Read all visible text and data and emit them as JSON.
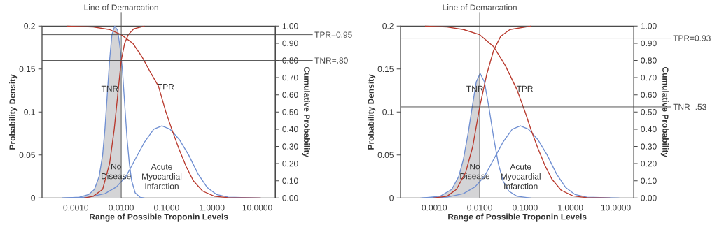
{
  "chart_data": [
    {
      "type": "line",
      "xlabel": "Range of Possible Troponin Levels",
      "ylabel": "Probability Density",
      "y2label": "Cumulative Probability",
      "log": "x",
      "xlim": [
        0.00018,
        25
      ],
      "xticks": [
        {
          "value": 0.001,
          "label": "0.0010"
        },
        {
          "value": 0.01,
          "label": "0.0100"
        },
        {
          "value": 0.1,
          "label": "0.1000"
        },
        {
          "value": 1,
          "label": "1.0000"
        },
        {
          "value": 10,
          "label": "10.0000"
        }
      ],
      "ylim": [
        0,
        0.2
      ],
      "yticks": [
        0,
        0.05,
        0.1,
        0.15,
        0.2
      ],
      "y2lim": [
        0,
        1
      ],
      "y2ticks": [
        {
          "value": 0,
          "label": "0.00"
        },
        {
          "value": 0.1,
          "label": "0.10"
        },
        {
          "value": 0.2,
          "label": "0.20"
        },
        {
          "value": 0.3,
          "label": "0.30"
        },
        {
          "value": 0.4,
          "label": "0.40"
        },
        {
          "value": 0.5,
          "label": "0.50"
        },
        {
          "value": 0.6,
          "label": "0.60"
        },
        {
          "value": 0.7,
          "label": "0.70"
        },
        {
          "value": 0.8,
          "label": "0.80"
        },
        {
          "value": 0.9,
          "label": "0.90"
        },
        {
          "value": 1,
          "label": "1.00"
        }
      ],
      "series": [
        {
          "type": "area",
          "color": "#d4d4d6",
          "x": [
            0.000492,
            0.0012,
            0.00191,
            0.00257,
            0.00326,
            0.00389,
            0.00437,
            0.00492,
            0.00554,
            0.00623,
            0.00718,
            0.00838,
            0.00942,
            0.01
          ],
          "values": [
            0,
            0.001,
            0.004,
            0.01,
            0.025,
            0.05,
            0.08,
            0.12,
            0.16,
            0.19,
            0.2,
            0.195,
            0.175,
            0.163
          ]
        },
        {
          "type": "line",
          "color": "#6f8fd2",
          "x": [
            0.000492,
            0.0012,
            0.00191,
            0.00257,
            0.00326,
            0.00389,
            0.00437,
            0.00492,
            0.00554,
            0.00623,
            0.00718,
            0.00838,
            0.00942,
            0.0106,
            0.0119,
            0.0134,
            0.0151,
            0.017,
            0.0203,
            0.0257,
            0.0326
          ],
          "values": [
            0,
            0.001,
            0.004,
            0.01,
            0.025,
            0.05,
            0.08,
            0.12,
            0.16,
            0.19,
            0.2,
            0.195,
            0.175,
            0.15,
            0.11,
            0.07,
            0.04,
            0.02,
            0.006,
            0.001,
            0
          ]
        },
        {
          "type": "line",
          "color": "#6f8fd2",
          "x": [
            0.000492,
            0.00191,
            0.00437,
            0.00789,
            0.0127,
            0.0203,
            0.0326,
            0.0522,
            0.0789,
            0.119,
            0.191,
            0.307,
            0.492,
            0.79,
            1.27,
            2.29,
            11.9
          ],
          "values": [
            0,
            0.001,
            0.005,
            0.013,
            0.025,
            0.045,
            0.065,
            0.08,
            0.084,
            0.08,
            0.068,
            0.05,
            0.028,
            0.012,
            0.004,
            0.001,
            0
          ]
        },
        {
          "type": "line",
          "axis": "y2",
          "color": "#b8382c",
          "x": [
            0.00152,
            0.00242,
            0.00389,
            0.00554,
            0.00702,
            0.00838,
            0.01,
            0.0119,
            0.0143,
            0.0191,
            0.0326
          ],
          "values": [
            0,
            0.01,
            0.05,
            0.2,
            0.4,
            0.6,
            0.8,
            0.9,
            0.95,
            0.985,
            1
          ]
        },
        {
          "type": "line",
          "axis": "y2",
          "color": "#b8382c",
          "x": [
            0.000623,
            0.00242,
            0.00554,
            0.01,
            0.018,
            0.0289,
            0.0464,
            0.0662,
            0.0965,
            0.134,
            0.191,
            0.273,
            0.389,
            0.624,
            1.13,
            2.29,
            11.9
          ],
          "values": [
            1,
            0.995,
            0.98,
            0.95,
            0.9,
            0.82,
            0.72,
            0.65,
            0.5,
            0.39,
            0.28,
            0.18,
            0.1,
            0.04,
            0.01,
            0.002,
            0
          ]
        }
      ],
      "ref_lines": [
        {
          "axis": "x",
          "value": 0.01,
          "label": "Line of Demarcation"
        },
        {
          "axis": "y2",
          "value": 0.95,
          "label": "TPR=0.95"
        },
        {
          "axis": "y2",
          "value": 0.8,
          "label": "TNR=.80"
        }
      ],
      "annotations": [
        "TNR",
        "TPR",
        "No Disease",
        "Acute Myocardial Infarction"
      ]
    },
    {
      "type": "line",
      "xlabel": "Range of Possible Troponin Levels",
      "ylabel": "Probability Density",
      "y2label": "Cumulative Probability",
      "log": "x",
      "xlim": [
        0.00018,
        25
      ],
      "xticks": [
        {
          "value": 0.001,
          "label": "0.0010"
        },
        {
          "value": 0.01,
          "label": "0.0100"
        },
        {
          "value": 0.1,
          "label": "0.1000"
        },
        {
          "value": 1,
          "label": "1.0000"
        },
        {
          "value": 10,
          "label": "10.0000"
        }
      ],
      "ylim": [
        0,
        0.2
      ],
      "yticks": [
        0,
        0.05,
        0.1,
        0.15,
        0.2
      ],
      "y2lim": [
        0,
        1
      ],
      "y2ticks": [
        {
          "value": 0,
          "label": "0.00"
        },
        {
          "value": 0.1,
          "label": "0.10"
        },
        {
          "value": 0.2,
          "label": "0.20"
        },
        {
          "value": 0.3,
          "label": "0.30"
        },
        {
          "value": 0.4,
          "label": "0.40"
        },
        {
          "value": 0.5,
          "label": "0.50"
        },
        {
          "value": 0.6,
          "label": "0.60"
        },
        {
          "value": 0.7,
          "label": "0.70"
        },
        {
          "value": 0.8,
          "label": "0.80"
        },
        {
          "value": 0.9,
          "label": "0.90"
        },
        {
          "value": 1,
          "label": "1.00"
        }
      ],
      "series": [
        {
          "type": "area",
          "color": "#d4d4d6",
          "x": [
            0.000522,
            0.00134,
            0.00242,
            0.00345,
            0.00437,
            0.00554,
            0.00702,
            0.00838,
            0.01
          ],
          "values": [
            0,
            0.002,
            0.01,
            0.025,
            0.045,
            0.075,
            0.11,
            0.135,
            0.145
          ]
        },
        {
          "type": "line",
          "color": "#6f8fd2",
          "x": [
            0.000522,
            0.00134,
            0.00242,
            0.00345,
            0.00437,
            0.00554,
            0.00702,
            0.00838,
            0.0102,
            0.0127,
            0.016,
            0.0203,
            0.0257,
            0.0326,
            0.0438,
            0.0662,
            0.134
          ],
          "values": [
            0,
            0.002,
            0.01,
            0.025,
            0.045,
            0.075,
            0.11,
            0.135,
            0.145,
            0.135,
            0.105,
            0.07,
            0.04,
            0.02,
            0.008,
            0.002,
            0
          ]
        },
        {
          "type": "line",
          "color": "#6f8fd2",
          "x": [
            0.000492,
            0.00191,
            0.00437,
            0.00789,
            0.0127,
            0.0203,
            0.0326,
            0.0522,
            0.0789,
            0.119,
            0.191,
            0.307,
            0.492,
            0.79,
            1.27,
            2.29,
            11.9
          ],
          "values": [
            0,
            0.001,
            0.005,
            0.013,
            0.025,
            0.045,
            0.065,
            0.08,
            0.084,
            0.08,
            0.068,
            0.05,
            0.028,
            0.012,
            0.004,
            0.001,
            0
          ]
        },
        {
          "type": "line",
          "axis": "y2",
          "color": "#b8382c",
          "x": [
            0.000943,
            0.00191,
            0.00307,
            0.00492,
            0.00702,
            0.01,
            0.0143,
            0.0203,
            0.0289,
            0.0464,
            0.134
          ],
          "values": [
            0,
            0.01,
            0.05,
            0.15,
            0.3,
            0.53,
            0.72,
            0.86,
            0.94,
            0.98,
            1
          ]
        },
        {
          "type": "line",
          "axis": "y2",
          "color": "#b8382c",
          "x": [
            0.000623,
            0.00191,
            0.00437,
            0.01,
            0.0203,
            0.0367,
            0.0662,
            0.1,
            0.134,
            0.191,
            0.273,
            0.389,
            0.624,
            1.13,
            2.29,
            7.44
          ],
          "values": [
            1,
            0.995,
            0.98,
            0.95,
            0.88,
            0.77,
            0.63,
            0.5,
            0.4,
            0.29,
            0.19,
            0.11,
            0.045,
            0.012,
            0.002,
            0
          ]
        }
      ],
      "ref_lines": [
        {
          "axis": "x",
          "value": 0.01,
          "label": "Line of Demarcation"
        },
        {
          "axis": "y2",
          "value": 0.93,
          "label": "TPR=0.93"
        },
        {
          "axis": "y2",
          "value": 0.53,
          "label": "TNR=.53"
        }
      ],
      "annotations": [
        "TNR",
        "TPR",
        "No Disease",
        "Acute Myocardial Infarction"
      ]
    }
  ]
}
